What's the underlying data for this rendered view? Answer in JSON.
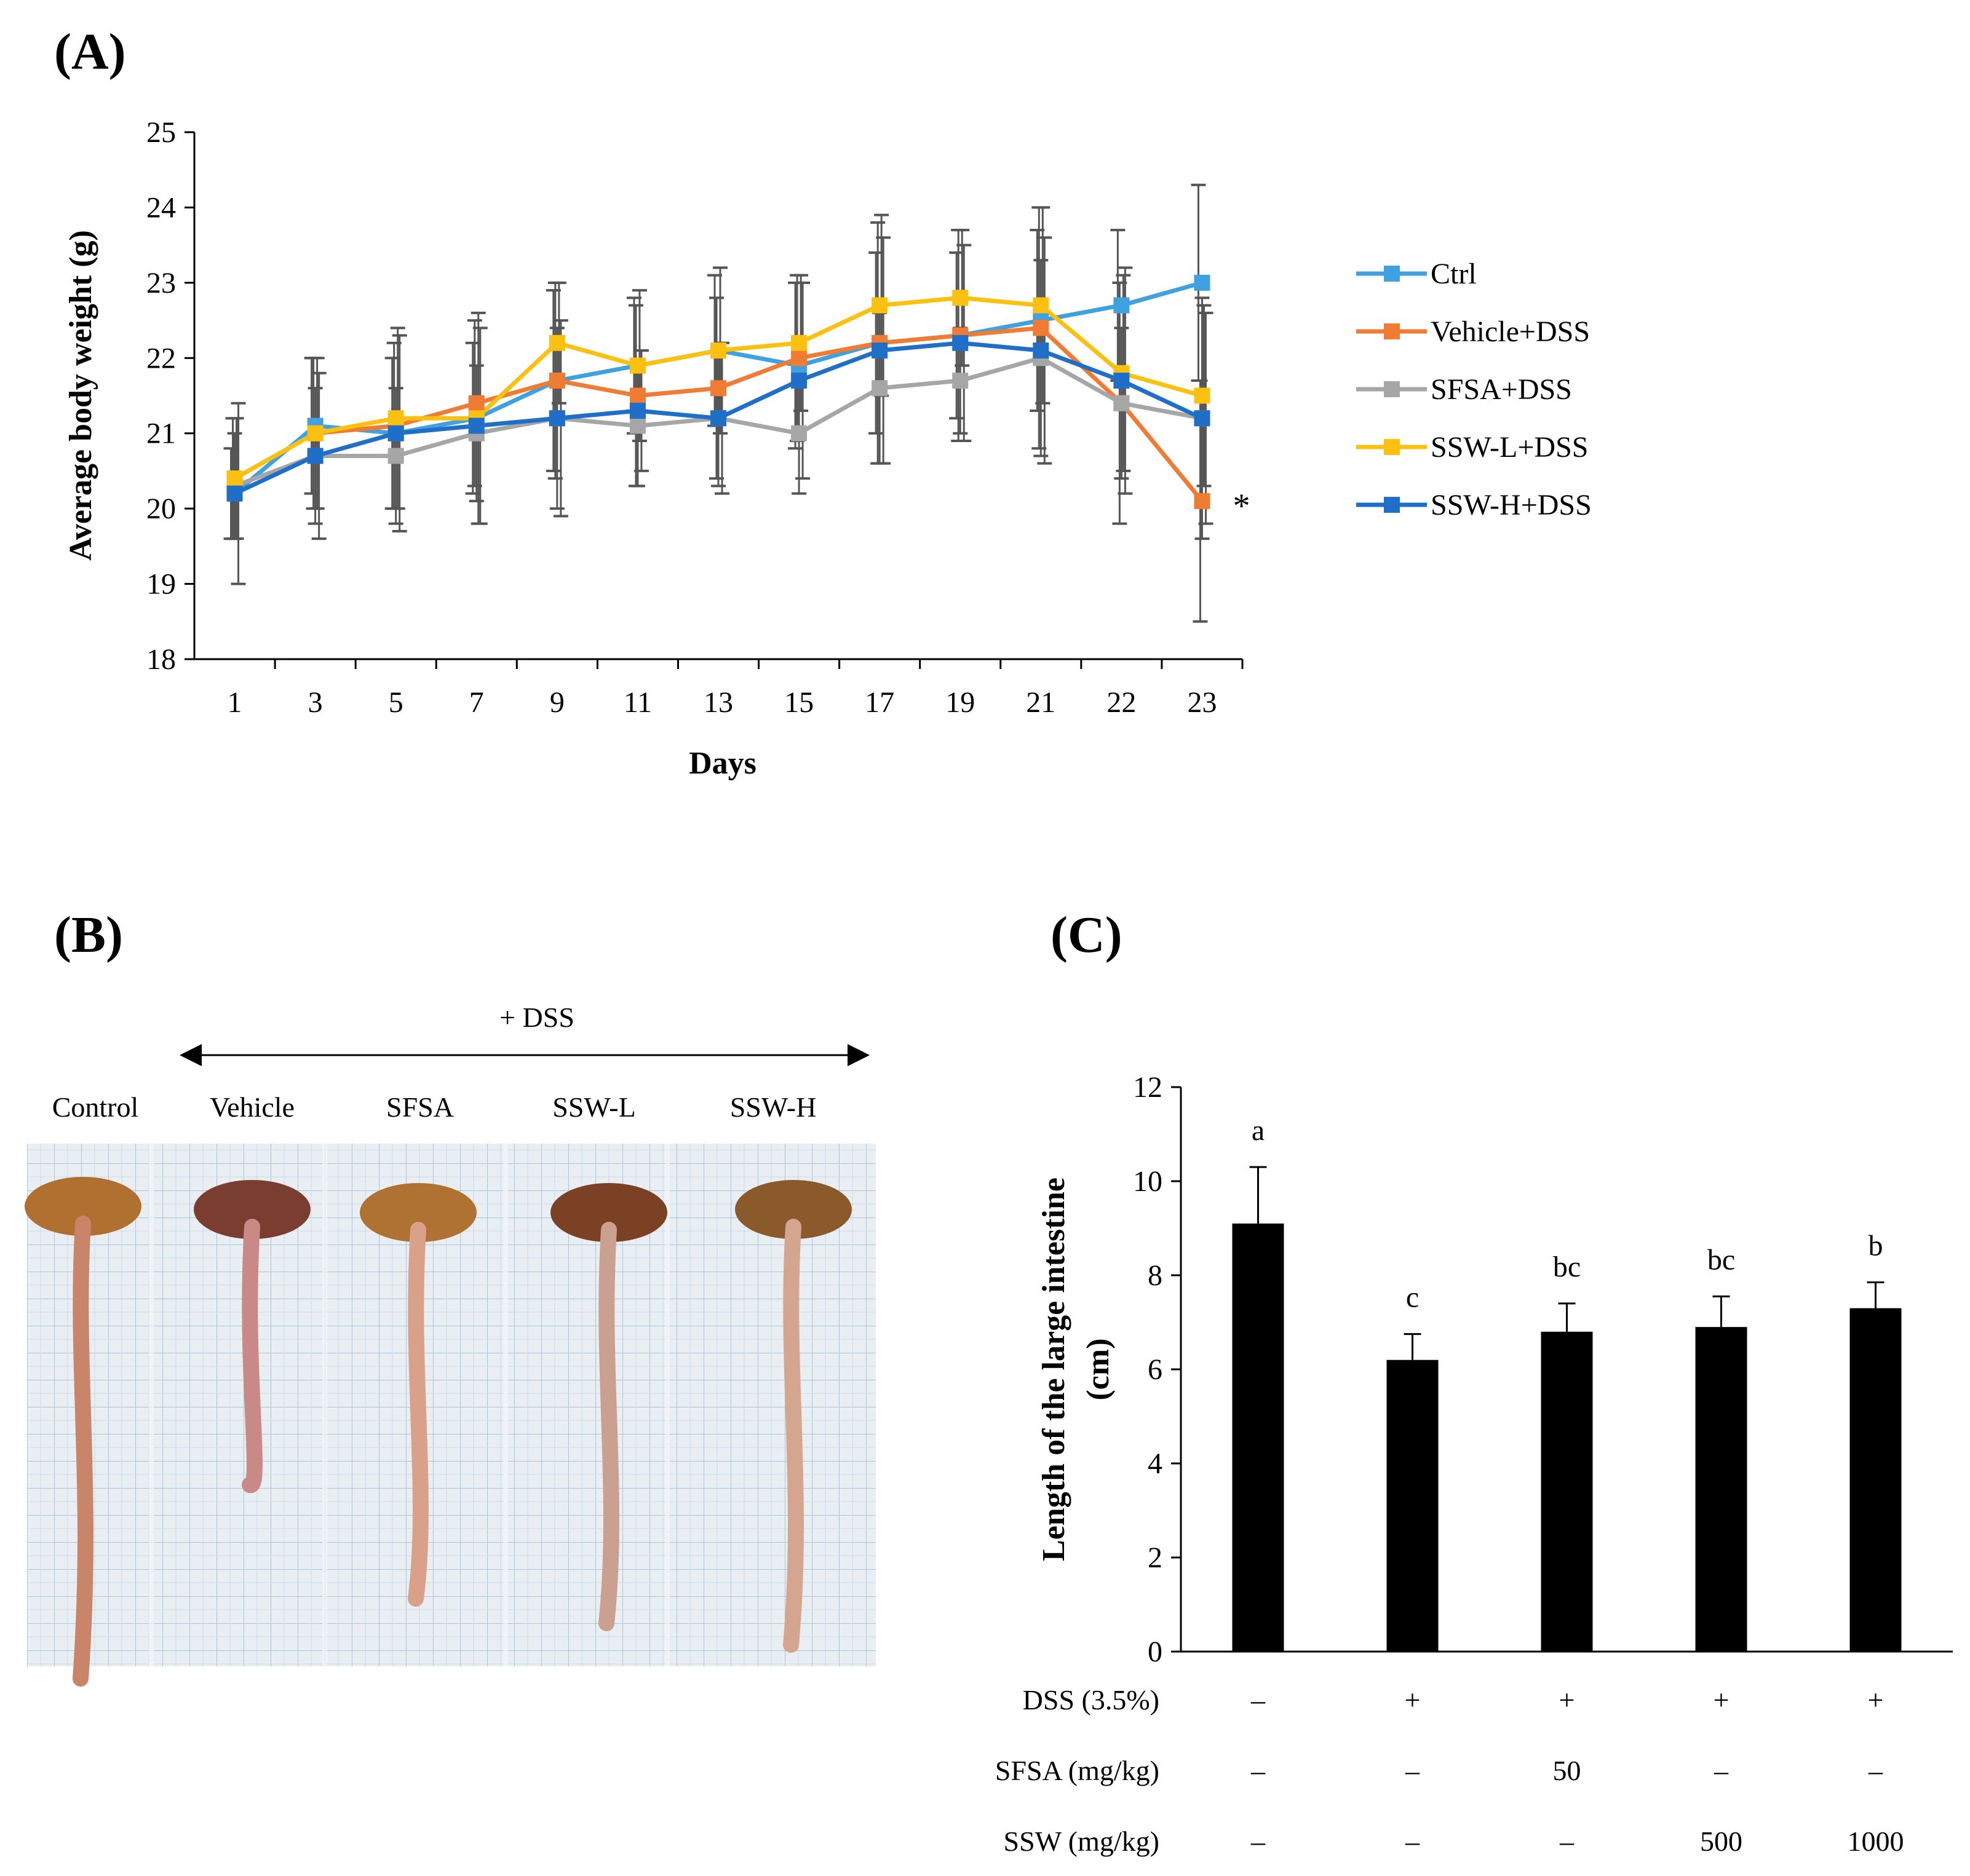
{
  "panels": {
    "a_label": "(A)",
    "b_label": "(B)",
    "c_label": "(C)"
  },
  "colors": {
    "Ctrl": "#3fa1e0",
    "Vehicle+DSS": "#f07b32",
    "SFSA+DSS": "#a6a6a6",
    "SSW-L+DSS": "#fcc010",
    "SSW-H+DSS": "#1f6fc8",
    "errorbar": "#555555",
    "bar": "#000000"
  },
  "chart_data": [
    {
      "id": "A",
      "type": "line",
      "title": "",
      "xlabel": "Days",
      "ylabel": "Average body weight (g)",
      "ylim": [
        18,
        25
      ],
      "yticks": [
        18,
        19,
        20,
        21,
        22,
        23,
        24,
        25
      ],
      "categories": [
        "1",
        "3",
        "5",
        "7",
        "9",
        "11",
        "13",
        "15",
        "17",
        "19",
        "21",
        "22",
        "23"
      ],
      "series": [
        {
          "name": "Ctrl",
          "values": [
            20.2,
            21.1,
            21.0,
            21.2,
            21.7,
            21.9,
            22.1,
            21.9,
            22.2,
            22.3,
            22.5,
            22.7,
            23.0
          ],
          "errors": [
            0.6,
            0.9,
            1.0,
            1.0,
            1.2,
            0.9,
            1.0,
            1.1,
            1.2,
            1.1,
            1.2,
            1.0,
            1.3
          ]
        },
        {
          "name": "Vehicle+DSS",
          "values": [
            20.4,
            21.0,
            21.1,
            21.4,
            21.7,
            21.5,
            21.6,
            22.0,
            22.2,
            22.3,
            22.4,
            21.4,
            20.1
          ],
          "errors": [
            0.8,
            1.0,
            1.1,
            1.1,
            1.3,
            1.2,
            1.2,
            1.1,
            1.6,
            1.4,
            1.6,
            1.6,
            1.6
          ]
        },
        {
          "name": "SFSA+DSS",
          "values": [
            20.3,
            20.7,
            20.7,
            21.0,
            21.2,
            21.1,
            21.2,
            21.0,
            21.6,
            21.7,
            22.0,
            21.4,
            21.2
          ],
          "errors": [
            0.7,
            0.9,
            0.9,
            0.9,
            1.2,
            0.8,
            0.9,
            0.8,
            1.0,
            0.7,
            1.3,
            1.0,
            1.6
          ]
        },
        {
          "name": "SSW-L+DSS",
          "values": [
            20.4,
            21.0,
            21.2,
            21.2,
            22.2,
            21.9,
            22.1,
            22.2,
            22.7,
            22.8,
            22.7,
            21.8,
            21.5
          ],
          "errors": [
            0.8,
            1.0,
            1.2,
            1.4,
            0.8,
            1.0,
            1.1,
            0.9,
            1.2,
            0.9,
            1.3,
            1.3,
            1.2
          ]
        },
        {
          "name": "SSW-H+DSS",
          "values": [
            20.2,
            20.7,
            21.0,
            21.1,
            21.2,
            21.3,
            21.2,
            21.7,
            22.1,
            22.2,
            22.1,
            21.7,
            21.2
          ],
          "errors": [
            1.2,
            1.1,
            1.3,
            1.3,
            1.3,
            0.8,
            1.0,
            1.3,
            1.5,
            1.3,
            1.5,
            1.5,
            1.4
          ]
        }
      ],
      "legend": [
        "Ctrl",
        "Vehicle+DSS",
        "SFSA+DSS",
        "SSW-L+DSS",
        "SSW-H+DSS"
      ],
      "legend_position": "right",
      "annotations": [
        {
          "text": "*",
          "series": "Vehicle+DSS",
          "category": "23"
        }
      ]
    },
    {
      "id": "C",
      "type": "bar",
      "title": "",
      "xlabel": "",
      "ylabel": "Length of the large intestine (cm)",
      "ylabel_lines": [
        "Length of the large intestine",
        "(cm)"
      ],
      "ylim": [
        0,
        12
      ],
      "yticks": [
        0,
        2,
        4,
        6,
        8,
        10,
        12
      ],
      "values": [
        9.1,
        6.2,
        6.8,
        6.9,
        7.3
      ],
      "errors": [
        1.2,
        0.55,
        0.6,
        0.65,
        0.55
      ],
      "letters": [
        "a",
        "c",
        "bc",
        "bc",
        "b"
      ],
      "treatment_table": [
        {
          "label": "DSS (3.5%)",
          "cells": [
            "–",
            "+",
            "+",
            "+",
            "+"
          ]
        },
        {
          "label": "SFSA (mg/kg)",
          "cells": [
            "–",
            "–",
            "50",
            "–",
            "–"
          ]
        },
        {
          "label": "SSW (mg/kg)",
          "cells": [
            "–",
            "–",
            "–",
            "500",
            "1000"
          ]
        }
      ]
    }
  ],
  "photo_panel": {
    "dss_label": "+ DSS",
    "groups": [
      "Control",
      "Vehicle",
      "SFSA",
      "SSW-L",
      "SSW-H"
    ]
  }
}
